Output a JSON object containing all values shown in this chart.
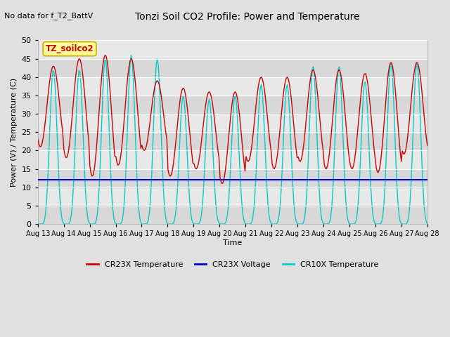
{
  "title": "Tonzi Soil CO2 Profile: Power and Temperature",
  "no_data_label": "No data for f_T2_BattV",
  "ylabel": "Power (V) / Temperature (C)",
  "xlabel": "Time",
  "ylim": [
    0,
    50
  ],
  "yticks": [
    0,
    5,
    10,
    15,
    20,
    25,
    30,
    35,
    40,
    45,
    50
  ],
  "start_day": 13,
  "end_day": 28,
  "background_color": "#e0e0e0",
  "plot_bg_color": "#e8e8e8",
  "cr23x_temp_color": "#cc0000",
  "cr23x_volt_color": "#0000cc",
  "cr10x_temp_color": "#00cccc",
  "cr23x_volt_value": 12.1,
  "legend_label_cr23x_temp": "CR23X Temperature",
  "legend_label_cr23x_volt": "CR23X Voltage",
  "legend_label_cr10x_temp": "CR10X Temperature",
  "tz_soilco2_label": "TZ_soilco2",
  "tz_box_color": "#ffff99",
  "tz_box_edge": "#ccaa00",
  "grid_color": "#ffffff",
  "alt_band_color": "#d8d8d8"
}
